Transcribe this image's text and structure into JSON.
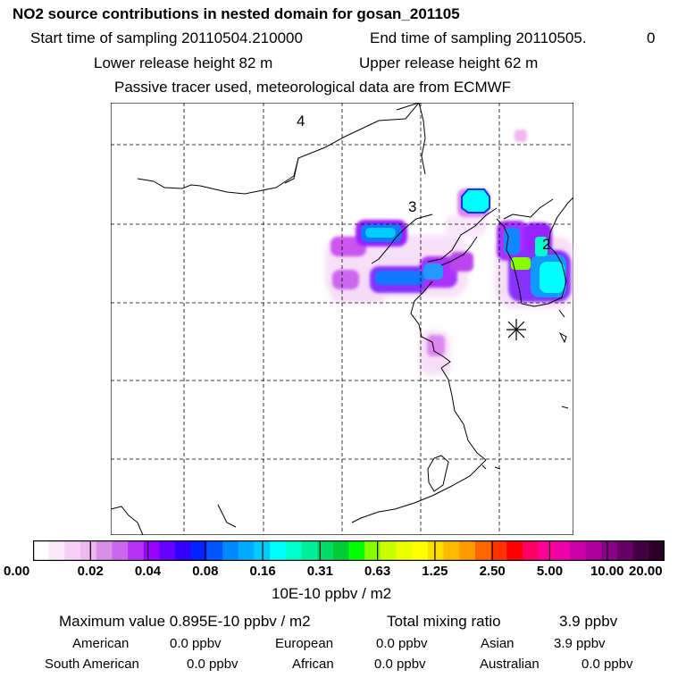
{
  "header": {
    "title": "NO2 source contributions in nested domain for gosan_201105",
    "start_label": "Start time of sampling 20110504.210000",
    "end_label": "End time of sampling 20110505.",
    "end_hour": "0",
    "lower_release": "Lower release height   82 m",
    "upper_release": "Upper release height   62 m",
    "tracer_note": "Passive tracer used, meteorological data are from ECMWF"
  },
  "map": {
    "region_labels": [
      "4",
      "3",
      "2"
    ],
    "receptor_marker": "star-marker"
  },
  "colorbar": {
    "ticks": [
      "0.00",
      "0.02",
      "0.04",
      "0.08",
      "0.16",
      "0.31",
      "0.63",
      "1.25",
      "2.50",
      "5.00",
      "10.00",
      "20.00"
    ],
    "colors": [
      "#ffffff",
      "#fbe8fb",
      "#f6d0f6",
      "#f0b8f0",
      "#d98ee8",
      "#cc66ee",
      "#b833f5",
      "#9900ff",
      "#6600ff",
      "#3300ff",
      "#0022ff",
      "#0055ff",
      "#0088ff",
      "#00aaff",
      "#00ccff",
      "#00ffff",
      "#00ffcc",
      "#00ee99",
      "#00dd66",
      "#00cc33",
      "#00ff00",
      "#88ff00",
      "#ccff00",
      "#eeff00",
      "#ffff00",
      "#ffdd00",
      "#ffbb00",
      "#ff9900",
      "#ff6600",
      "#ff3300",
      "#ff0000",
      "#ff0066",
      "#ff0099",
      "#ee00aa",
      "#cc00aa",
      "#aa0099",
      "#880088",
      "#660066",
      "#440044",
      "#2a002a"
    ],
    "units": "10E-10 ppbv / m2"
  },
  "stats": {
    "max_label": "Maximum value  0.895E-10 ppbv / m2",
    "total_label": "Total mixing ratio",
    "total_value": "3.9 ppbv",
    "american_label": "American",
    "american_value": "0.0 ppbv",
    "european_label": "European",
    "european_value": "0.0 ppbv",
    "asian_label": "Asian",
    "asian_value": "3.9 ppbv",
    "south_american_label": "South American",
    "south_american_value": "0.0 ppbv",
    "african_label": "African",
    "african_value": "0.0 ppbv",
    "australian_label": "Australian",
    "australian_value": "0.0 ppbv"
  }
}
